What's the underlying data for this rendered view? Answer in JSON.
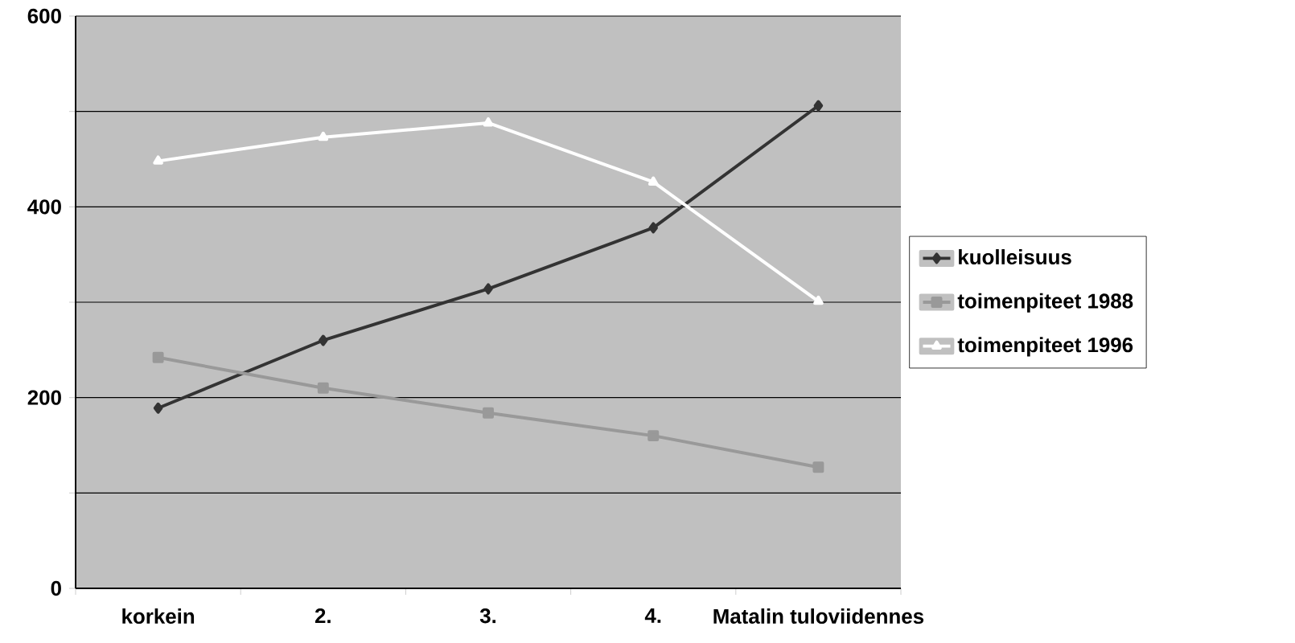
{
  "chart_data": {
    "type": "line",
    "categories": [
      "korkein",
      "2.",
      "3.",
      "4.",
      "Matalin tuloviidennes"
    ],
    "series": [
      {
        "name": "kuolleisuus",
        "color": "#333333",
        "marker": "diamond",
        "values": [
          189,
          260,
          314,
          378,
          506
        ]
      },
      {
        "name": "toimenpiteet 1988",
        "color": "#999999",
        "marker": "square",
        "values": [
          242,
          210,
          184,
          160,
          127
        ]
      },
      {
        "name": "toimenpiteet 1996",
        "color": "#ffffff",
        "marker": "triangle",
        "values": [
          448,
          473,
          488,
          426,
          301
        ]
      }
    ],
    "ylim": [
      0,
      600
    ],
    "yticks": [
      0,
      {
        "value": 100,
        "label": null
      },
      200,
      {
        "value": 300,
        "label": null
      },
      400,
      {
        "value": 500,
        "label": null
      },
      600
    ],
    "grid": "y",
    "legend": "right"
  }
}
